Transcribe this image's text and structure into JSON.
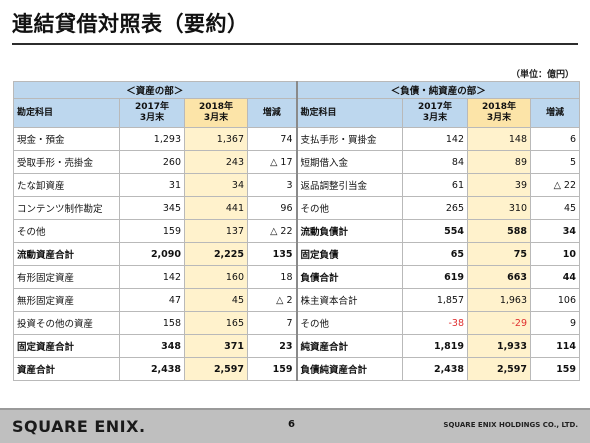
{
  "title": "連結貸借対照表（要約）",
  "unit": "（単位：億円）",
  "assets_group": "＜資産の部＞",
  "liab_group": "＜負債・純資産の部＞",
  "header": {
    "label": "勘定科目",
    "y2017_line1": "2017年",
    "y2017_line2": "3月末",
    "y2018_line1": "2018年",
    "y2018_line2": "3月末",
    "change": "増減"
  },
  "rows": [
    {
      "a": [
        "現金・預金",
        "1,293",
        "1,367",
        "74"
      ],
      "l": [
        "支払手形・買掛金",
        "142",
        "148",
        "6"
      ]
    },
    {
      "a": [
        "受取手形・売掛金",
        "260",
        "243",
        "△ 17"
      ],
      "l": [
        "短期借入金",
        "84",
        "89",
        "5"
      ]
    },
    {
      "a": [
        "たな卸資産",
        "31",
        "34",
        "3"
      ],
      "l": [
        "返品調整引当金",
        "61",
        "39",
        "△ 22"
      ]
    },
    {
      "a": [
        "コンテンツ制作勘定",
        "345",
        "441",
        "96"
      ],
      "l": [
        "その他",
        "265",
        "310",
        "45"
      ]
    },
    {
      "a": [
        "その他",
        "159",
        "137",
        "△ 22"
      ],
      "l": [
        "流動負債計",
        "554",
        "588",
        "34"
      ]
    },
    {
      "a": [
        "流動資産合計",
        "2,090",
        "2,225",
        "135"
      ],
      "l": [
        "固定負債",
        "65",
        "75",
        "10"
      ]
    },
    {
      "a": [
        "有形固定資産",
        "142",
        "160",
        "18"
      ],
      "l": [
        "負債合計",
        "619",
        "663",
        "44"
      ]
    },
    {
      "a": [
        "無形固定資産",
        "47",
        "45",
        "△ 2"
      ],
      "l": [
        "株主資本合計",
        "1,857",
        "1,963",
        "106"
      ]
    },
    {
      "a": [
        "投資その他の資産",
        "158",
        "165",
        "7"
      ],
      "l": [
        "その他",
        "-38",
        "-29",
        "9"
      ]
    },
    {
      "a": [
        "固定資産合計",
        "348",
        "371",
        "23"
      ],
      "l": [
        "純資産合計",
        "1,819",
        "1,933",
        "114"
      ]
    },
    {
      "a": [
        "資産合計",
        "2,438",
        "2,597",
        "159"
      ],
      "l": [
        "負債純資産合計",
        "2,438",
        "2,597",
        "159"
      ]
    }
  ],
  "footer": {
    "logo": "SQUARE ENIX.",
    "page": "6",
    "company": "SQUARE ENIX HOLDINGS CO., LTD."
  }
}
